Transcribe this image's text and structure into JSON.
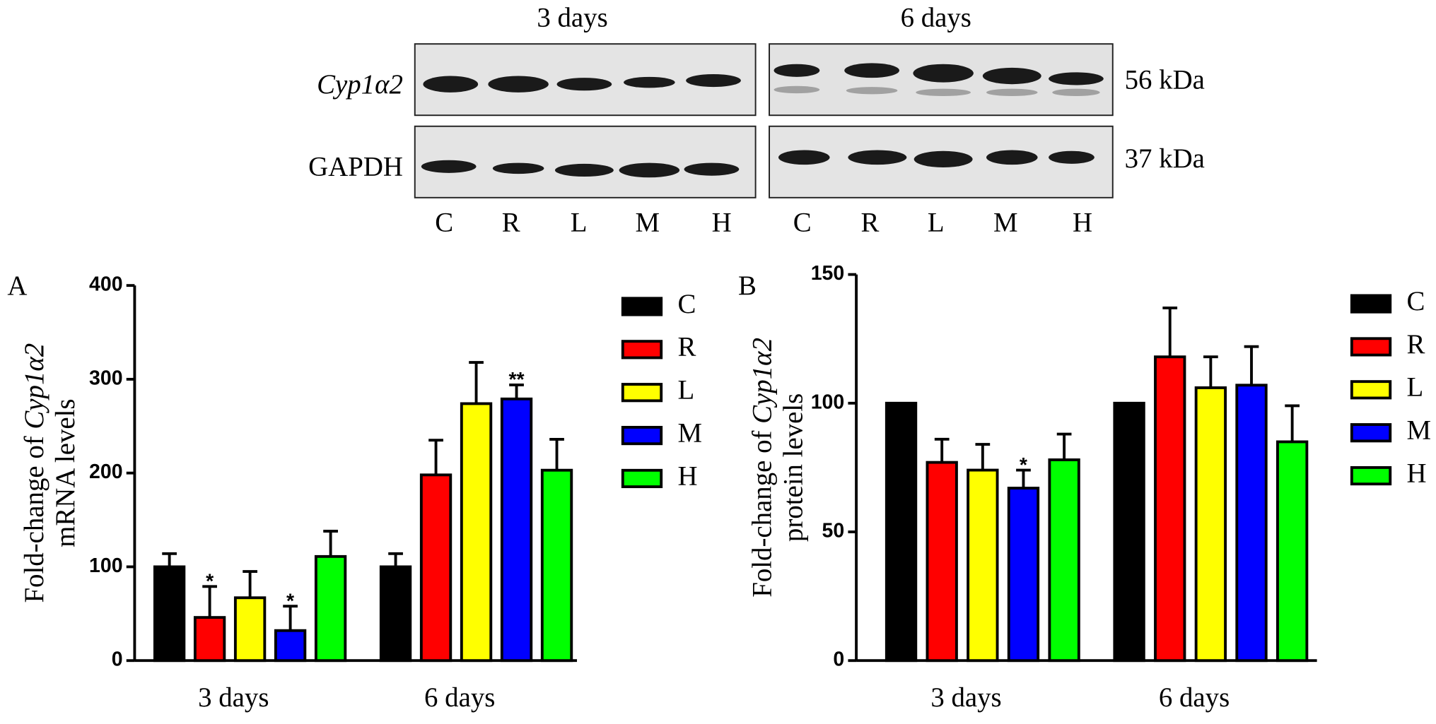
{
  "blot": {
    "time_labels": [
      "3 days",
      "6 days"
    ],
    "proteins": [
      "Cyp1α2",
      "GAPDH"
    ],
    "sizes": [
      "56 kDa",
      "37 kDa"
    ],
    "lanes": [
      "C",
      "R",
      "L",
      "M",
      "H"
    ]
  },
  "chart_data": [
    {
      "type": "bar",
      "panel": "A",
      "ylabel": [
        "Fold-change of ",
        "Cyp1α2",
        "mRNA levels"
      ],
      "categories": [
        "3 days",
        "6 days"
      ],
      "ylim": [
        0,
        400
      ],
      "yticks": [
        0,
        100,
        200,
        300,
        400
      ],
      "series": [
        {
          "name": "C",
          "color": "#000000",
          "values": [
            100,
            100
          ],
          "errors": [
            14,
            14
          ],
          "significance": [
            null,
            null
          ]
        },
        {
          "name": "R",
          "color": "#ff0000",
          "values": [
            46,
            198
          ],
          "errors": [
            33,
            37
          ],
          "significance": [
            "*",
            null
          ]
        },
        {
          "name": "L",
          "color": "#ffff00",
          "values": [
            67,
            274
          ],
          "errors": [
            28,
            44
          ],
          "significance": [
            null,
            null
          ]
        },
        {
          "name": "M",
          "color": "#0000ff",
          "values": [
            32,
            279
          ],
          "errors": [
            26,
            15
          ],
          "significance": [
            "*",
            "**"
          ]
        },
        {
          "name": "H",
          "color": "#00ff00",
          "values": [
            111,
            203
          ],
          "errors": [
            27,
            33
          ],
          "significance": [
            null,
            null
          ]
        }
      ]
    },
    {
      "type": "bar",
      "panel": "B",
      "ylabel": [
        "Fold-change of ",
        "Cyp1α2",
        "protein levels"
      ],
      "categories": [
        "3 days",
        "6 days"
      ],
      "ylim": [
        0,
        150
      ],
      "yticks": [
        0,
        50,
        100,
        150
      ],
      "series": [
        {
          "name": "C",
          "color": "#000000",
          "values": [
            100,
            100
          ],
          "errors": [
            null,
            null
          ],
          "significance": [
            null,
            null
          ]
        },
        {
          "name": "R",
          "color": "#ff0000",
          "values": [
            77,
            118
          ],
          "errors": [
            9,
            19
          ],
          "significance": [
            null,
            null
          ]
        },
        {
          "name": "L",
          "color": "#ffff00",
          "values": [
            74,
            106
          ],
          "errors": [
            10,
            12
          ],
          "significance": [
            null,
            null
          ]
        },
        {
          "name": "M",
          "color": "#0000ff",
          "values": [
            67,
            107
          ],
          "errors": [
            7,
            15
          ],
          "significance": [
            "*",
            null
          ]
        },
        {
          "name": "H",
          "color": "#00ff00",
          "values": [
            78,
            85
          ],
          "errors": [
            10,
            14
          ],
          "significance": [
            null,
            null
          ]
        }
      ]
    }
  ]
}
